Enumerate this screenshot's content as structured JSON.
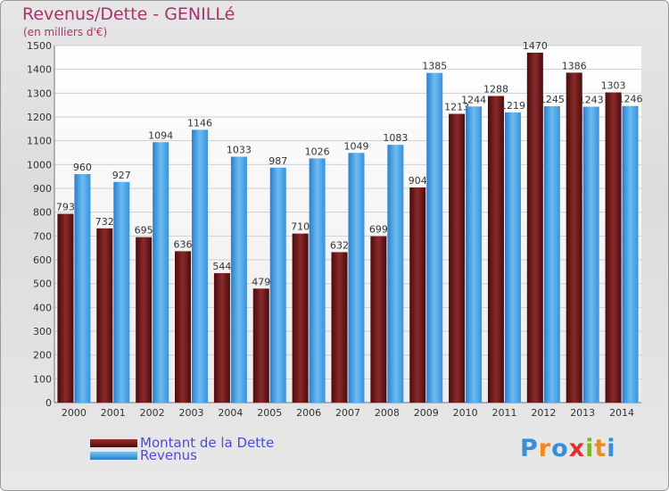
{
  "chart_data": {
    "type": "bar",
    "title": "Revenus/Dette - GENILLé",
    "subtitle": "(en milliers d'€)",
    "categories": [
      "2000",
      "2001",
      "2002",
      "2003",
      "2004",
      "2005",
      "2006",
      "2007",
      "2008",
      "2009",
      "2010",
      "2011",
      "2012",
      "2013",
      "2014"
    ],
    "series": [
      {
        "name": "Montant de la Dette",
        "color": "#7a1e1e",
        "values": [
          793,
          732,
          695,
          636,
          544,
          479,
          710,
          632,
          699,
          904,
          1213,
          1288,
          1470,
          1386,
          1303
        ]
      },
      {
        "name": "Revenus",
        "color": "#4da6e8",
        "values": [
          960,
          927,
          1094,
          1146,
          1033,
          987,
          1026,
          1049,
          1083,
          1385,
          1244,
          1219,
          1245,
          1243,
          1246
        ]
      }
    ],
    "ylim": [
      0,
      1500
    ],
    "yticks": [
      0,
      100,
      200,
      300,
      400,
      500,
      600,
      700,
      800,
      900,
      1000,
      1100,
      1200,
      1300,
      1400,
      1500
    ],
    "grid": true,
    "legend_position": "bottom-left"
  },
  "brand": {
    "logo_text": "Proxiti",
    "letter_colors": [
      "#3a8ed8",
      "#f08a1c",
      "#3a8ed8",
      "#e03030",
      "#78b82a",
      "#f08a1c",
      "#3a8ed8"
    ]
  }
}
